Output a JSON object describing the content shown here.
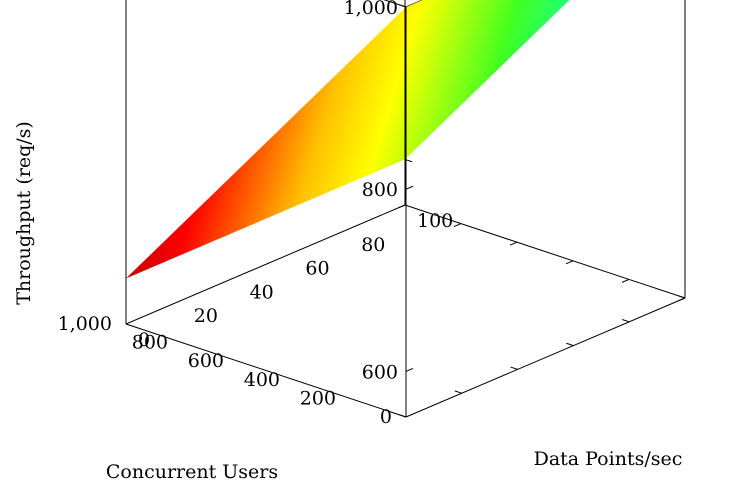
{
  "chart_data": {
    "type": "surface",
    "x_axis": {
      "label": "Concurrent Users",
      "range": [
        0,
        1000
      ],
      "ticks": [
        0,
        200,
        400,
        600,
        800,
        1000
      ],
      "tick_labels": [
        "0",
        "200",
        "400",
        "600",
        "800",
        "1,000"
      ]
    },
    "y_axis": {
      "label": "Data Points/sec",
      "range": [
        0,
        100
      ],
      "ticks": [
        0,
        20,
        40,
        60,
        80,
        100
      ],
      "tick_labels": [
        "0",
        "20",
        "40",
        "60",
        "80",
        "100"
      ]
    },
    "z_axis": {
      "label": "Throughput (req/s)",
      "range": [
        550,
        1000
      ],
      "ticks": [
        600,
        800,
        1000
      ],
      "tick_labels": [
        "600",
        "800",
        "1,000"
      ]
    },
    "surface_corners": [
      {
        "users": 0,
        "points_per_sec": 0,
        "throughput": 1000
      },
      {
        "users": 0,
        "points_per_sec": 100,
        "throughput": 1000
      },
      {
        "users": 1000,
        "points_per_sec": 0,
        "throughput": 600
      },
      {
        "users": 1000,
        "points_per_sec": 100,
        "throughput": 600
      }
    ],
    "colormap": "jet",
    "grid": false,
    "box": true
  }
}
